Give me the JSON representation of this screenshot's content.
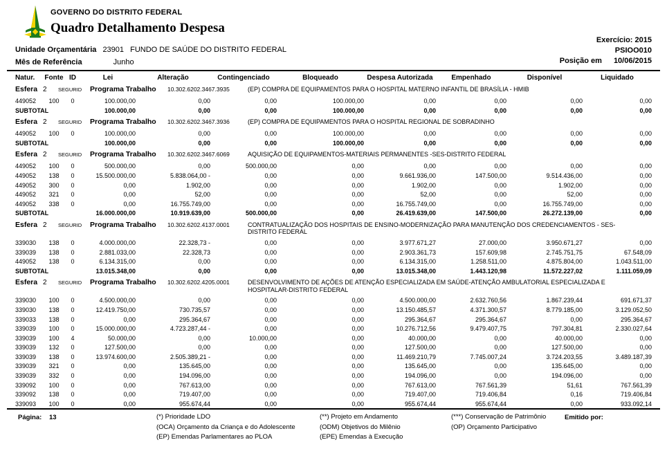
{
  "header": {
    "org_name": "GOVERNO DO DISTRITO FEDERAL",
    "title": "Quadro Detalhamento Despesa",
    "exercicio": "Exercício: 2015",
    "report_code": "PSIOO010",
    "posicao_label": "Posição em",
    "posicao_date": "10/06/2015",
    "unidade_label": "Unidade Orçamentária",
    "unidade_code": "23901",
    "unidade_name": "FUNDO DE SAÚDE DO DISTRITO FEDERAL",
    "mes_label": "Mês de Referência",
    "mes_value": "Junho",
    "logo_green": "#1d7a1d",
    "logo_yellow": "#f2d400"
  },
  "table": {
    "columns": [
      "Natur.",
      "Fonte",
      "ID",
      "Lei",
      "Alteração",
      "Contingenciado",
      "Bloqueado",
      "Despesa Autorizada",
      "Empenhado",
      "Disponível",
      "Liquidado"
    ],
    "esfera_label": "Esfera",
    "programa_label": "Programa Trabalho",
    "subtotal_label": "SUBTOTAL",
    "sections": [
      {
        "esfera": "2",
        "segurid": "SEGURID",
        "code": "10.302.6202.3467.3935",
        "desc": "(EP) COMPRA DE EQUIPAMENTOS PARA O HOSPITAL MATERNO INFANTIL DE BRASÍLIA - HMIB",
        "rows": [
          [
            "449052",
            "100",
            "0",
            "100.000,00",
            "0,00",
            "0,00",
            "100.000,00",
            "0,00",
            "0,00",
            "0,00",
            "0,00"
          ]
        ],
        "subtotal": [
          "100.000,00",
          "0,00",
          "0,00",
          "100.000,00",
          "0,00",
          "0,00",
          "0,00",
          "0,00"
        ]
      },
      {
        "esfera": "2",
        "segurid": "SEGURID",
        "code": "10.302.6202.3467.3936",
        "desc": "(EP) COMPRA DE EQUIPAMENTOS PARA O HOSPITAL REGIONAL DE SOBRADINHO",
        "rows": [
          [
            "449052",
            "100",
            "0",
            "100.000,00",
            "0,00",
            "0,00",
            "100.000,00",
            "0,00",
            "0,00",
            "0,00",
            "0,00"
          ]
        ],
        "subtotal": [
          "100.000,00",
          "0,00",
          "0,00",
          "100.000,00",
          "0,00",
          "0,00",
          "0,00",
          "0,00"
        ]
      },
      {
        "esfera": "2",
        "segurid": "SEGURID",
        "code": "10.302.6202.3467.6069",
        "desc": "AQUISIÇÃO DE EQUIPAMENTOS-MATERIAIS PERMANENTES -SES-DISTRITO FEDERAL",
        "rows": [
          [
            "449052",
            "100",
            "0",
            "500.000,00",
            "0,00",
            "500.000,00",
            "0,00",
            "0,00",
            "0,00",
            "0,00",
            "0,00"
          ],
          [
            "449052",
            "138",
            "0",
            "15.500.000,00",
            "5.838.064,00 -",
            "0,00",
            "0,00",
            "9.661.936,00",
            "147.500,00",
            "9.514.436,00",
            "0,00"
          ],
          [
            "449052",
            "300",
            "0",
            "0,00",
            "1.902,00",
            "0,00",
            "0,00",
            "1.902,00",
            "0,00",
            "1.902,00",
            "0,00"
          ],
          [
            "449052",
            "321",
            "0",
            "0,00",
            "52,00",
            "0,00",
            "0,00",
            "52,00",
            "0,00",
            "52,00",
            "0,00"
          ],
          [
            "449052",
            "338",
            "0",
            "0,00",
            "16.755.749,00",
            "0,00",
            "0,00",
            "16.755.749,00",
            "0,00",
            "16.755.749,00",
            "0,00"
          ]
        ],
        "subtotal": [
          "16.000.000,00",
          "10.919.639,00",
          "500.000,00",
          "0,00",
          "26.419.639,00",
          "147.500,00",
          "26.272.139,00",
          "0,00"
        ]
      },
      {
        "esfera": "2",
        "segurid": "SEGURID",
        "code": "10.302.6202.4137.0001",
        "desc": "CONTRATUALIZAÇÃO DOS HOSPITAIS DE ENSINO-MODERNIZAÇÃO PARA MANUTENÇÃO DOS CREDENCIAMENTOS - SES-DISTRITO FEDERAL",
        "rows": [
          [
            "339030",
            "138",
            "0",
            "4.000.000,00",
            "22.328,73 -",
            "0,00",
            "0,00",
            "3.977.671,27",
            "27.000,00",
            "3.950.671,27",
            "0,00"
          ],
          [
            "339039",
            "138",
            "0",
            "2.881.033,00",
            "22.328,73",
            "0,00",
            "0,00",
            "2.903.361,73",
            "157.609,98",
            "2.745.751,75",
            "67.548,09"
          ],
          [
            "449052",
            "138",
            "0",
            "6.134.315,00",
            "0,00",
            "0,00",
            "0,00",
            "6.134.315,00",
            "1.258.511,00",
            "4.875.804,00",
            "1.043.511,00"
          ]
        ],
        "subtotal": [
          "13.015.348,00",
          "0,00",
          "0,00",
          "0,00",
          "13.015.348,00",
          "1.443.120,98",
          "11.572.227,02",
          "1.111.059,09"
        ]
      },
      {
        "esfera": "2",
        "segurid": "SEGURID",
        "code": "10.302.6202.4205.0001",
        "desc": "DESENVOLVIMENTO DE AÇÕES DE ATENÇÃO ESPECIALIZADA EM SAÚDE-ATENÇÃO AMBULATORIAL ESPECIALIZADA E HOSPITALAR-DISTRITO FEDERAL",
        "rows": [
          [
            "339030",
            "100",
            "0",
            "4.500.000,00",
            "0,00",
            "0,00",
            "0,00",
            "4.500.000,00",
            "2.632.760,56",
            "1.867.239,44",
            "691.671,37"
          ],
          [
            "339030",
            "138",
            "0",
            "12.419.750,00",
            "730.735,57",
            "0,00",
            "0,00",
            "13.150.485,57",
            "4.371.300,57",
            "8.779.185,00",
            "3.129.052,50"
          ],
          [
            "339033",
            "138",
            "0",
            "0,00",
            "295.364,67",
            "0,00",
            "0,00",
            "295.364,67",
            "295.364,67",
            "0,00",
            "295.364,67"
          ],
          [
            "339039",
            "100",
            "0",
            "15.000.000,00",
            "4.723.287,44 -",
            "0,00",
            "0,00",
            "10.276.712,56",
            "9.479.407,75",
            "797.304,81",
            "2.330.027,64"
          ],
          [
            "339039",
            "100",
            "4",
            "50.000,00",
            "0,00",
            "10.000,00",
            "0,00",
            "40.000,00",
            "0,00",
            "40.000,00",
            "0,00"
          ],
          [
            "339039",
            "132",
            "0",
            "127.500,00",
            "0,00",
            "0,00",
            "0,00",
            "127.500,00",
            "0,00",
            "127.500,00",
            "0,00"
          ],
          [
            "339039",
            "138",
            "0",
            "13.974.600,00",
            "2.505.389,21 -",
            "0,00",
            "0,00",
            "11.469.210,79",
            "7.745.007,24",
            "3.724.203,55",
            "3.489.187,39"
          ],
          [
            "339039",
            "321",
            "0",
            "0,00",
            "135.645,00",
            "0,00",
            "0,00",
            "135.645,00",
            "0,00",
            "135.645,00",
            "0,00"
          ],
          [
            "339039",
            "332",
            "0",
            "0,00",
            "194.096,00",
            "0,00",
            "0,00",
            "194.096,00",
            "0,00",
            "194.096,00",
            "0,00"
          ],
          [
            "339092",
            "100",
            "0",
            "0,00",
            "767.613,00",
            "0,00",
            "0,00",
            "767.613,00",
            "767.561,39",
            "51,61",
            "767.561,39"
          ],
          [
            "339092",
            "138",
            "0",
            "0,00",
            "719.407,00",
            "0,00",
            "0,00",
            "719.407,00",
            "719.406,84",
            "0,16",
            "719.406,84"
          ],
          [
            "339093",
            "100",
            "0",
            "0,00",
            "955.674,44",
            "0,00",
            "0,00",
            "955.674,44",
            "955.674,44",
            "0,00",
            "933.092,14"
          ]
        ]
      }
    ]
  },
  "footer": {
    "page_label": "Página:",
    "page_number": "13",
    "legend_col1": [
      "(*)  Prioridade LDO",
      "(OCA)  Orçamento da Criança e do Adolescente",
      "(EP)  Emendas Parlamentares ao PLOA"
    ],
    "legend_col2": [
      "(**)  Projeto em Andamento",
      "(ODM) Objetivos do Milênio",
      "(EPE) Emendas à Execução"
    ],
    "legend_col3": [
      "(***)  Conservação de Patrimônio",
      "(OP) Orçamento Participativo"
    ],
    "emitido_label": "Emitido por:"
  }
}
